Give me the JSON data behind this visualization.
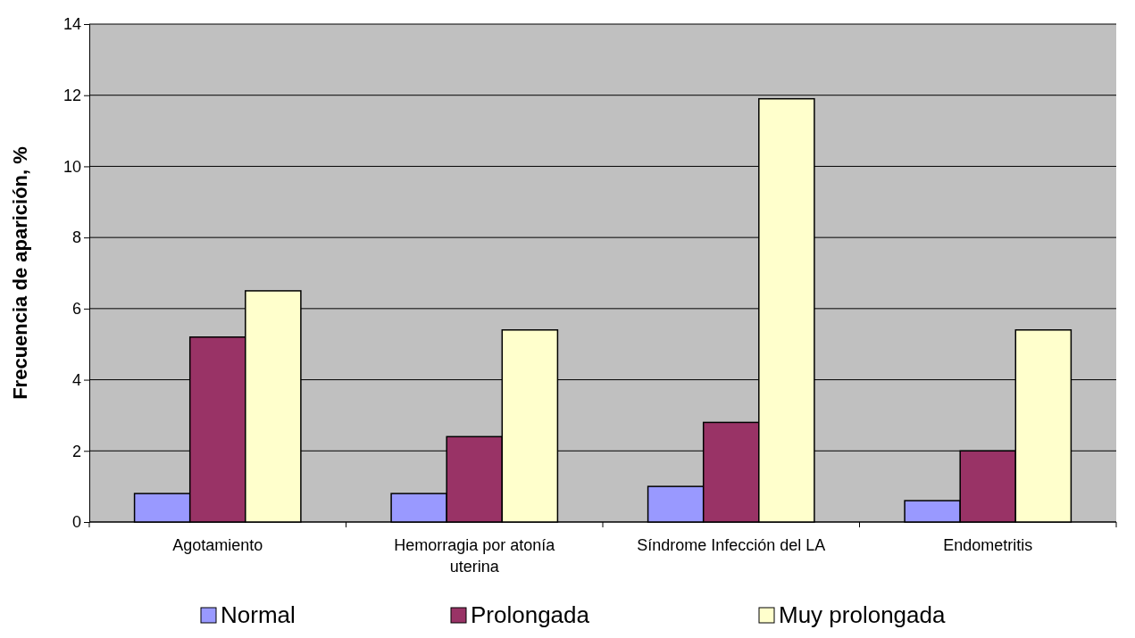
{
  "chart_data": {
    "type": "bar",
    "ylabel": "Frecuencia de aparición, %",
    "categories": [
      "Agotamiento",
      "Hemorragia por atonía uterina",
      "Síndrome Infección del LA",
      "Endometritis"
    ],
    "series": [
      {
        "name": "Normal",
        "color": "#9999ff",
        "values": [
          0.8,
          0.8,
          1.0,
          0.6
        ]
      },
      {
        "name": "Prolongada",
        "color": "#993366",
        "values": [
          5.2,
          2.4,
          2.8,
          2.0
        ]
      },
      {
        "name": "Muy prolongada",
        "color": "#ffffcc",
        "values": [
          6.5,
          5.4,
          11.9,
          5.4
        ]
      }
    ],
    "ylim": [
      0,
      14
    ],
    "yticks": [
      0,
      2,
      4,
      6,
      8,
      10,
      12,
      14
    ],
    "grid": "y",
    "legend": "bottom"
  }
}
